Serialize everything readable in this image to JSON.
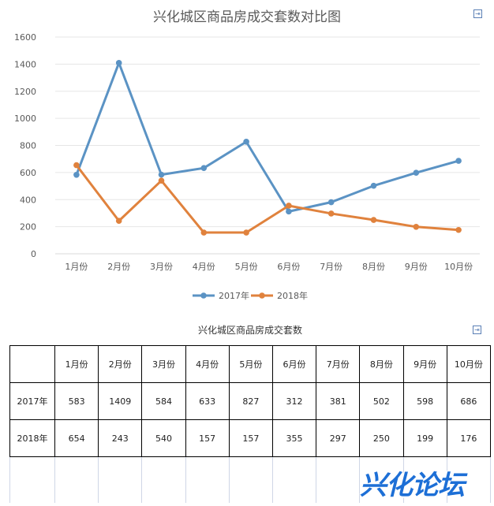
{
  "chart_data": {
    "type": "line",
    "title": "兴化城区商品房成交套数对比图",
    "categories": [
      "1月份",
      "2月份",
      "3月份",
      "4月份",
      "5月份",
      "6月份",
      "7月份",
      "8月份",
      "9月份",
      "10月份"
    ],
    "series": [
      {
        "name": "2017年",
        "color": "#5b93c4",
        "values": [
          583,
          1409,
          584,
          633,
          827,
          312,
          381,
          502,
          598,
          686
        ]
      },
      {
        "name": "2018年",
        "color": "#e0823d",
        "values": [
          654,
          243,
          540,
          157,
          157,
          355,
          297,
          250,
          199,
          176
        ]
      }
    ],
    "ylim": [
      0,
      1600
    ],
    "yticks": [
      0,
      200,
      400,
      600,
      800,
      1000,
      1200,
      1400,
      1600
    ],
    "grid": true,
    "legend": "bottom"
  },
  "icons": {
    "chart_export_icon": "export-icon",
    "table_export_icon": "export-icon"
  },
  "table": {
    "title": "兴化城区商品房成交套数",
    "header": [
      "",
      "1月份",
      "2月份",
      "3月份",
      "4月份",
      "5月份",
      "6月份",
      "7月份",
      "8月份",
      "9月份",
      "10月份"
    ],
    "rows": [
      {
        "label": "2017年",
        "cells": [
          "583",
          "1409",
          "584",
          "633",
          "827",
          "312",
          "381",
          "502",
          "598",
          "686"
        ]
      },
      {
        "label": "2018年",
        "cells": [
          "654",
          "243",
          "540",
          "157",
          "157",
          "355",
          "297",
          "250",
          "199",
          "176"
        ]
      }
    ]
  },
  "watermark": {
    "text": "兴化论坛"
  }
}
